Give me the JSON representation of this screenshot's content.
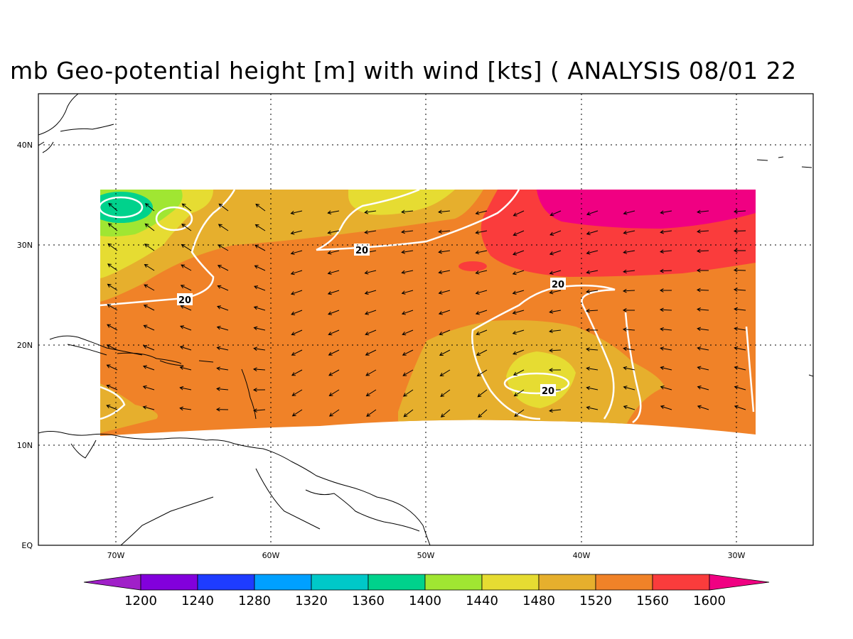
{
  "title": "mb Geo-potential height [m] with wind [kts] ( ANALYSIS 08/01 22",
  "axes": {
    "lon_ticks": [
      "70W",
      "60W",
      "50W",
      "40W",
      "30W"
    ],
    "lat_ticks": [
      "EQ",
      "10N",
      "20N",
      "30N",
      "40N"
    ],
    "lon_range_deg": [
      -75,
      -25
    ],
    "lat_range_deg": [
      0,
      45
    ],
    "grid": "dotted"
  },
  "colorbar": {
    "labels": [
      "1200",
      "1240",
      "1280",
      "1320",
      "1360",
      "1400",
      "1440",
      "1480",
      "1520",
      "1560",
      "1600"
    ],
    "colors": [
      "#a020c8",
      "#8200dc",
      "#1e3cff",
      "#00a0ff",
      "#00c8c8",
      "#00d28c",
      "#a0e632",
      "#e6dc32",
      "#e6af2d",
      "#f08228",
      "#fa3c3c",
      "#f00082"
    ],
    "extend": "both"
  },
  "contours": {
    "isotach_label": "20",
    "isotach_color": "#ffffff"
  },
  "field": {
    "region_lon": [
      -71,
      -29
    ],
    "region_lat": [
      11,
      35.5
    ],
    "dominant_band": "1560",
    "high_band_northeast": "1600",
    "low_band_northwest": "1400"
  }
}
